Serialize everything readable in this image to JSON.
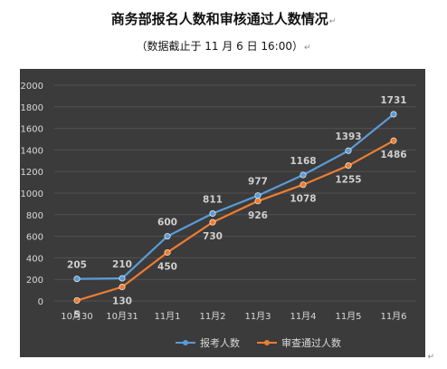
{
  "title": "商务部报名人数和审核通过人数情况",
  "subtitle": "（数据截止于 11 月 6 日 16:00）",
  "paragraph_mark": "↵",
  "end_mark": "↵",
  "colors": {
    "background": "#3b3b3b",
    "gridline": "#525252",
    "text": "#d9d9d9",
    "value_label": "#cfcfcf",
    "series_blue": "#5b9bd5",
    "series_orange": "#ed7d31"
  },
  "chart_data": {
    "type": "line",
    "categories": [
      "10月30",
      "10月31",
      "11月1",
      "11月2",
      "11月3",
      "11月4",
      "11月5",
      "11月6"
    ],
    "series": [
      {
        "name": "报考人数",
        "values": [
          205,
          210,
          600,
          811,
          977,
          1168,
          1393,
          1731
        ]
      },
      {
        "name": "审查通过人数",
        "values": [
          5,
          130,
          450,
          730,
          926,
          1078,
          1255,
          1486
        ]
      }
    ],
    "yticks": [
      0,
      200,
      400,
      600,
      800,
      1000,
      1200,
      1400,
      1600,
      1800,
      2000
    ],
    "ylim": [
      0,
      2000
    ],
    "grid": true,
    "legend_position": "bottom"
  }
}
